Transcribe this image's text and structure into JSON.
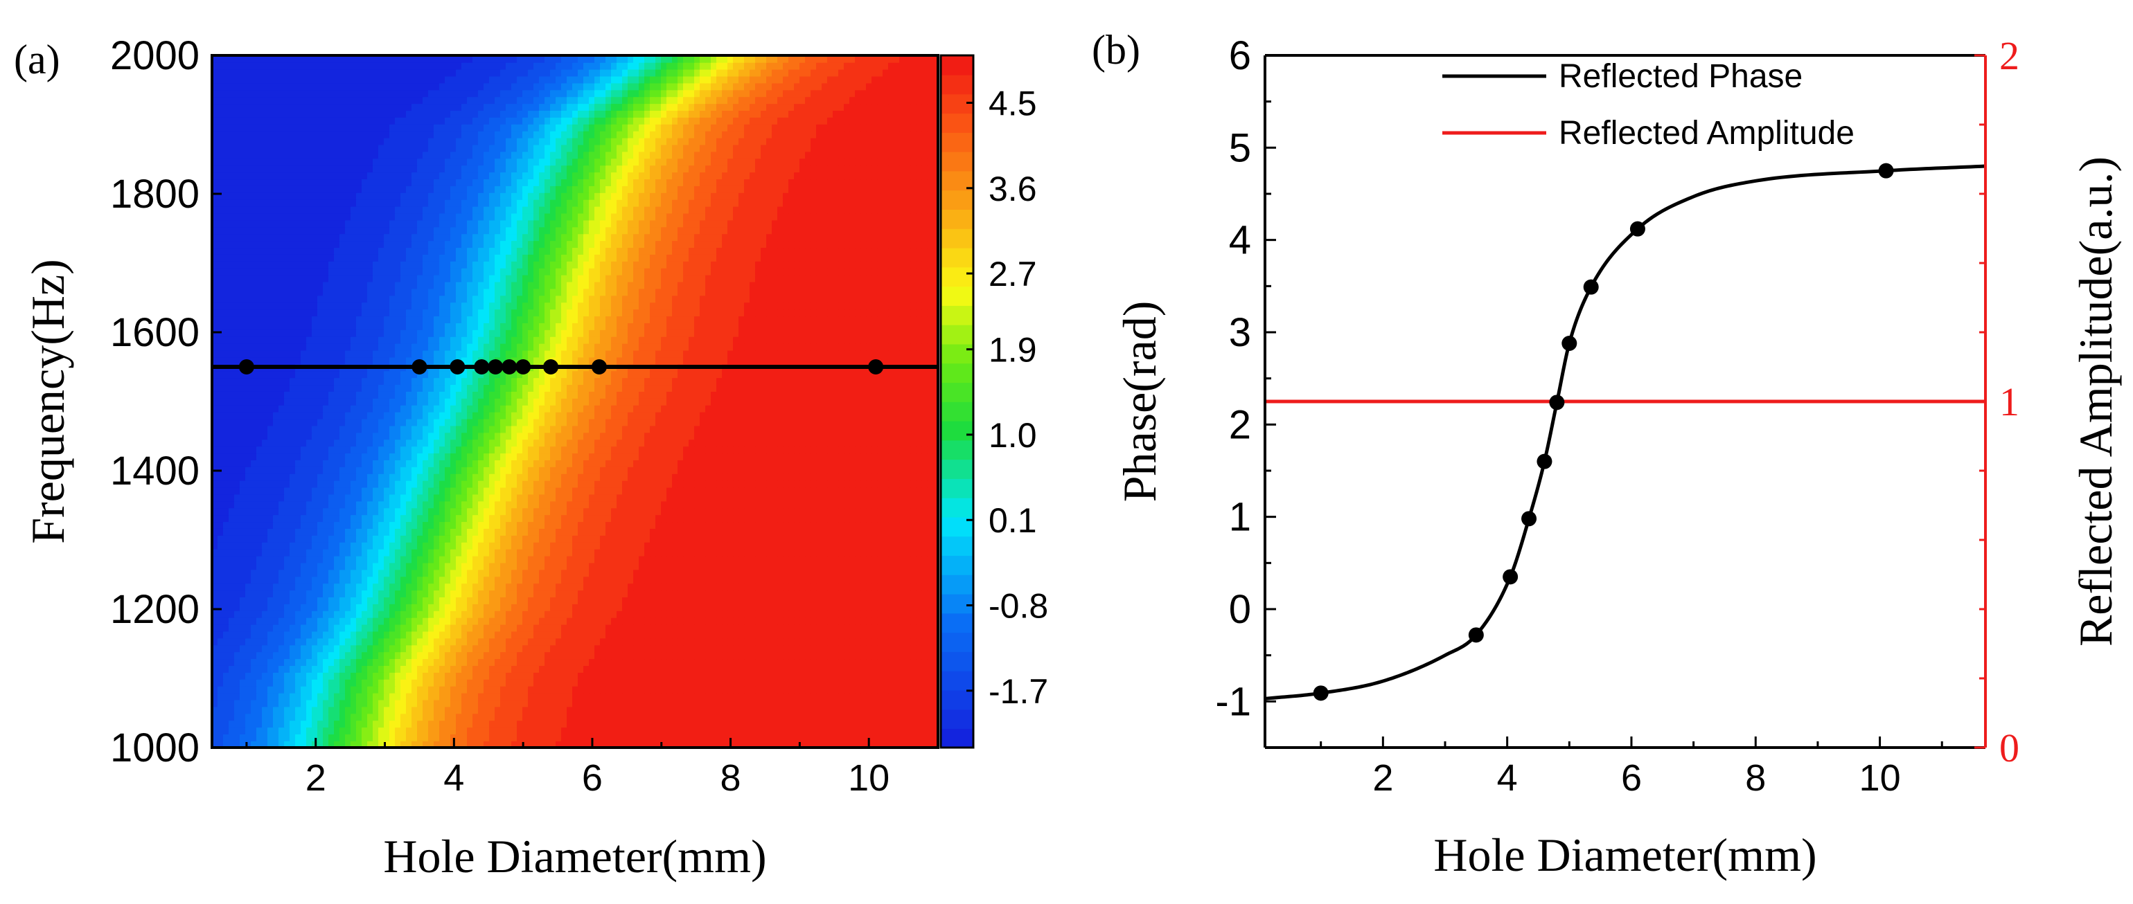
{
  "chart_data": [
    {
      "type": "heatmap",
      "panel_label": "(a)",
      "xlabel": "Hole Diameter(mm)",
      "ylabel": "Frequency(Hz)",
      "xlim": [
        0.5,
        11
      ],
      "ylim": [
        1000,
        2000
      ],
      "xticks": [
        "2",
        "4",
        "6",
        "8",
        "10"
      ],
      "yticks": [
        "1000",
        "1200",
        "1400",
        "1600",
        "1800",
        "2000"
      ],
      "colorbar": {
        "range": [
          -2.3,
          5.0
        ],
        "tick_labels": [
          "4.5",
          "3.6",
          "2.7",
          "1.9",
          "1.0",
          "0.1",
          "-0.8",
          "-1.7"
        ],
        "tick_values": [
          4.5,
          3.6,
          2.7,
          1.9,
          1.0,
          0.1,
          -0.8,
          -1.7
        ]
      },
      "contour_transition": {
        "description_free_values": true,
        "frequency": [
          1000,
          1100,
          1200,
          1300,
          1400,
          1500,
          1600,
          1700,
          1800,
          1900,
          2000
        ],
        "center_diameter": [
          2.4,
          2.7,
          3.3,
          3.7,
          4.1,
          4.6,
          5.0,
          5.3,
          5.7,
          6.2,
          7.4
        ]
      },
      "marker_line": {
        "frequency": 1550,
        "x": [
          1.0,
          3.5,
          4.05,
          4.4,
          4.6,
          4.8,
          5.0,
          5.4,
          6.1,
          10.1
        ]
      }
    },
    {
      "type": "line",
      "panel_label": "(b)",
      "xlabel": "Hole Diameter(mm)",
      "ylabel": "Phase(rad)",
      "y2label": "Reflected Amplitude(a.u.)",
      "xlim": [
        0.1,
        11.7
      ],
      "ylim": [
        -1.5,
        6
      ],
      "y2lim": [
        0,
        2
      ],
      "xticks": [
        "2",
        "4",
        "6",
        "8",
        "10"
      ],
      "yticks": [
        "-1",
        "0",
        "1",
        "2",
        "3",
        "4",
        "5",
        "6"
      ],
      "y2ticks": [
        "0",
        "1",
        "2"
      ],
      "legend_position": "top-right",
      "series": [
        {
          "name": "Reflected Phase",
          "color": "#000000",
          "axis": "left",
          "x": [
            0.1,
            1.0,
            2.0,
            3.0,
            3.5,
            4.05,
            4.35,
            4.6,
            4.8,
            5.0,
            5.35,
            6.1,
            7.0,
            8.0,
            10.1,
            11.7
          ],
          "values": [
            -0.97,
            -0.91,
            -0.78,
            -0.5,
            -0.28,
            0.35,
            0.98,
            1.6,
            2.24,
            2.88,
            3.49,
            4.12,
            4.47,
            4.64,
            4.75,
            4.8
          ],
          "markers_x": [
            1.0,
            3.5,
            4.05,
            4.35,
            4.6,
            4.8,
            5.0,
            5.35,
            6.1,
            10.1
          ],
          "markers_y": [
            -0.91,
            -0.28,
            0.35,
            0.98,
            1.6,
            2.24,
            2.88,
            3.49,
            4.12,
            4.75
          ]
        },
        {
          "name": "Reflected Amplitude",
          "color": "#ee1c1c",
          "axis": "right",
          "x": [
            0.1,
            11.7
          ],
          "values": [
            1.0,
            1.0
          ]
        }
      ]
    }
  ]
}
